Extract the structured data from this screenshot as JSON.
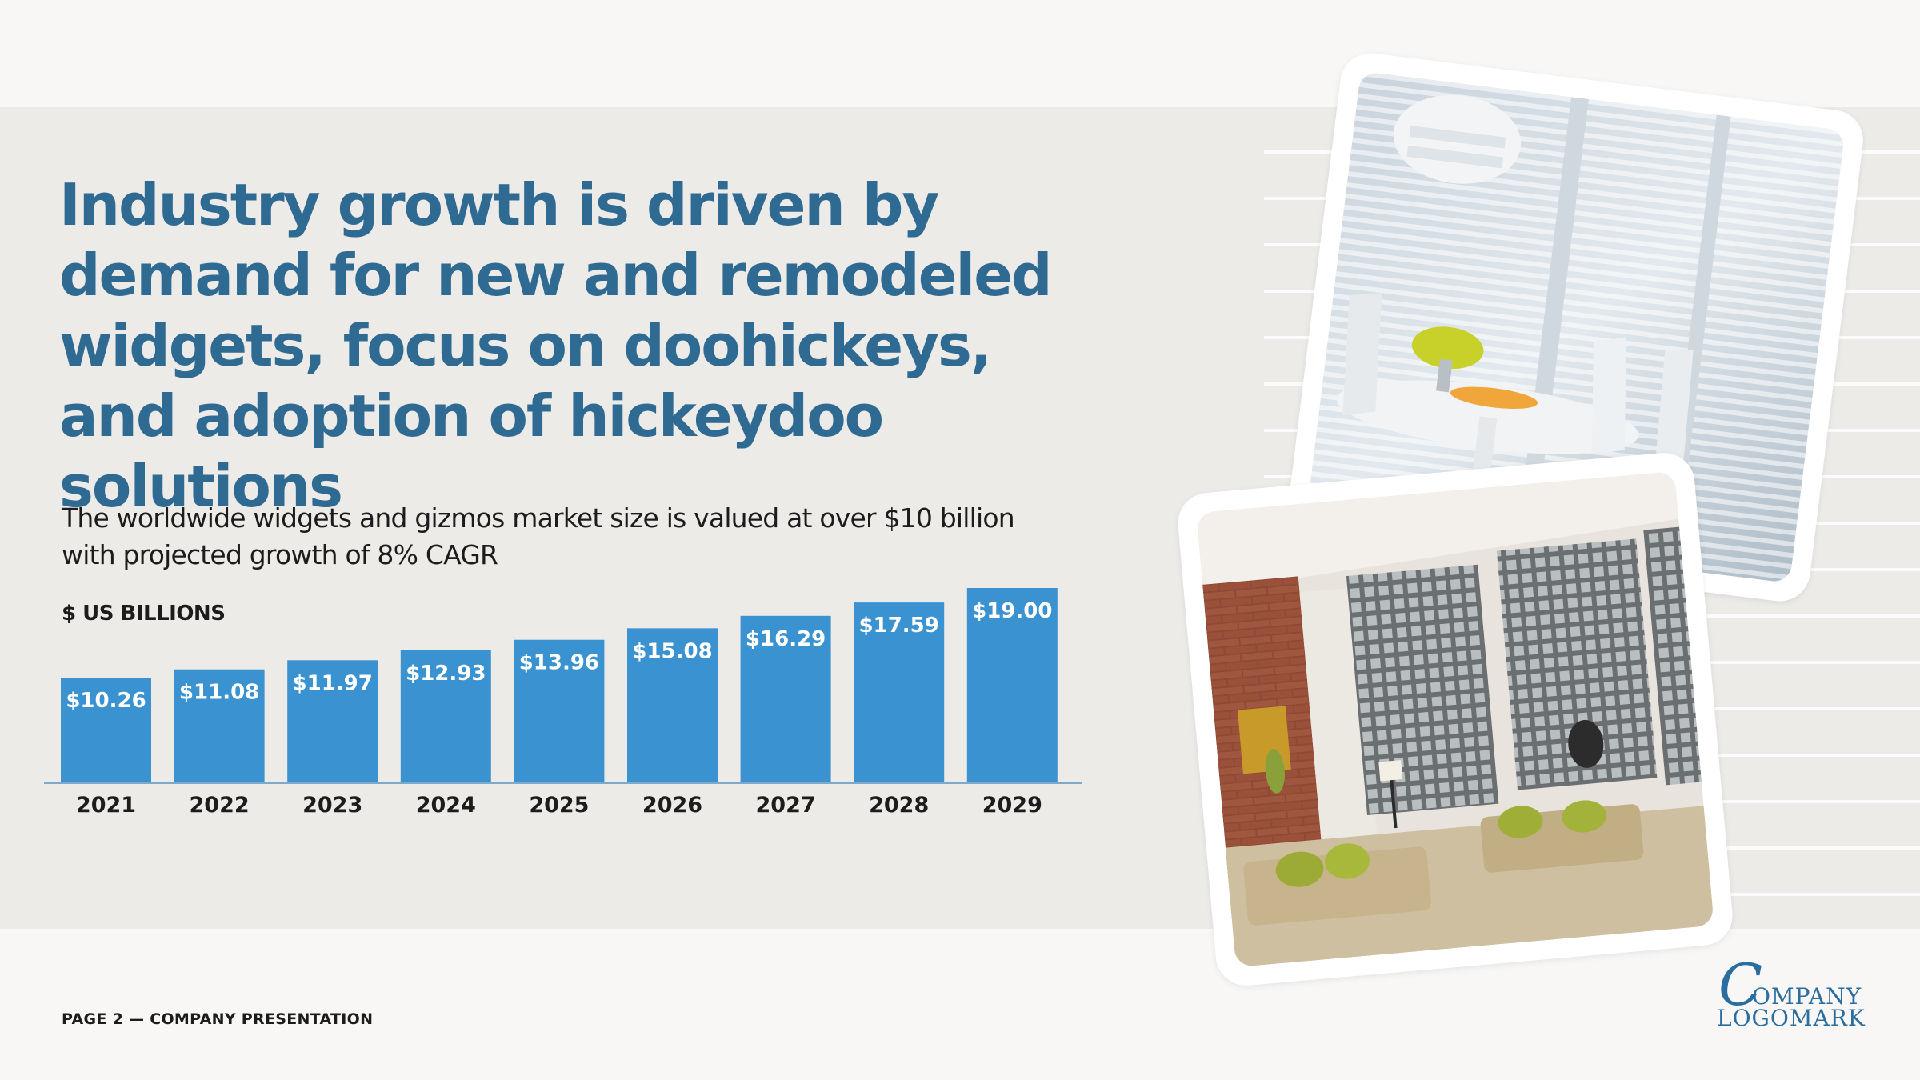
{
  "slide": {
    "title": "Industry growth is driven by demand for new and remodeled widgets, focus on doohickeys, and adoption of hickeydoo solutions",
    "subtitle": "The worldwide widgets and gizmos market size is valued at over $10 billion with projected growth of 8% CAGR",
    "unit_label": "$ US BILLIONS",
    "footer": "PAGE 2 — COMPANY PRESENTATION"
  },
  "logo": {
    "initial": "C",
    "line1": "OMPANY",
    "line2": "LOGOMARK"
  },
  "colors": {
    "accent": "#2f6a92",
    "bar": "#3a92d0",
    "band": "#edebe8",
    "background": "#f8f7f5"
  },
  "images": {
    "photo1": "white-window-blinds-dining-room",
    "photo2": "loft-living-room-woven-shades"
  },
  "chart_data": {
    "type": "bar",
    "categories": [
      "2021",
      "2022",
      "2023",
      "2024",
      "2025",
      "2026",
      "2027",
      "2028",
      "2029"
    ],
    "values": [
      10.26,
      11.08,
      11.97,
      12.93,
      13.96,
      15.08,
      16.29,
      17.59,
      19.0
    ],
    "data_labels": [
      "$10.26",
      "$11.08",
      "$11.97",
      "$12.93",
      "$13.96",
      "$15.08",
      "$16.29",
      "$17.59",
      "$19.00"
    ],
    "ylabel": "$ US BILLIONS",
    "ylim": [
      0,
      19.0
    ],
    "grid": false,
    "legend": "none"
  }
}
